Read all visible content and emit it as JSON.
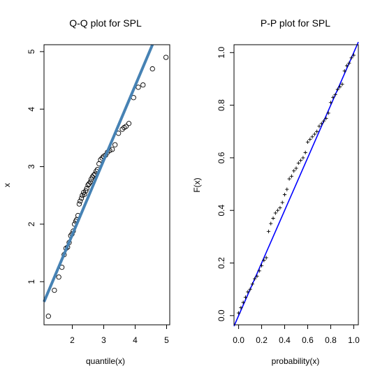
{
  "chart_data": [
    {
      "type": "scatter",
      "title": "Q-Q plot for SPL",
      "xlabel": "quantile(x)",
      "ylabel": "x",
      "xlim": [
        1.1,
        5.1
      ],
      "ylim": [
        0.25,
        5.12
      ],
      "xticks": [
        2,
        3,
        4,
        5
      ],
      "xtick_labels": [
        "2",
        "3",
        "4",
        "5"
      ],
      "yticks": [
        1,
        2,
        3,
        4,
        5
      ],
      "ytick_labels": [
        "1",
        "2",
        "3",
        "4",
        "5"
      ],
      "marker": "open-circle",
      "reference_line": {
        "x": [
          1.1,
          4.55
        ],
        "y": [
          0.65,
          5.12
        ],
        "color": "#4682b4"
      },
      "points": [
        [
          1.24,
          0.4
        ],
        [
          1.43,
          0.85
        ],
        [
          1.57,
          1.08
        ],
        [
          1.67,
          1.25
        ],
        [
          1.74,
          1.47
        ],
        [
          1.8,
          1.58
        ],
        [
          1.85,
          1.6
        ],
        [
          1.9,
          1.68
        ],
        [
          1.95,
          1.8
        ],
        [
          1.99,
          1.83
        ],
        [
          2.03,
          1.88
        ],
        [
          2.07,
          2.0
        ],
        [
          2.11,
          2.05
        ],
        [
          2.14,
          2.08
        ],
        [
          2.18,
          2.15
        ],
        [
          2.22,
          2.35
        ],
        [
          2.25,
          2.4
        ],
        [
          2.29,
          2.45
        ],
        [
          2.32,
          2.5
        ],
        [
          2.36,
          2.55
        ],
        [
          2.39,
          2.52
        ],
        [
          2.43,
          2.58
        ],
        [
          2.46,
          2.62
        ],
        [
          2.5,
          2.68
        ],
        [
          2.53,
          2.7
        ],
        [
          2.57,
          2.73
        ],
        [
          2.6,
          2.78
        ],
        [
          2.64,
          2.82
        ],
        [
          2.68,
          2.85
        ],
        [
          2.72,
          2.87
        ],
        [
          2.76,
          2.92
        ],
        [
          2.8,
          2.95
        ],
        [
          2.85,
          3.05
        ],
        [
          2.9,
          3.12
        ],
        [
          2.95,
          3.15
        ],
        [
          3.0,
          3.18
        ],
        [
          3.06,
          3.2
        ],
        [
          3.12,
          3.25
        ],
        [
          3.19,
          3.28
        ],
        [
          3.27,
          3.3
        ],
        [
          3.36,
          3.38
        ],
        [
          3.47,
          3.58
        ],
        [
          3.59,
          3.65
        ],
        [
          3.65,
          3.68
        ],
        [
          3.71,
          3.7
        ],
        [
          3.8,
          3.75
        ],
        [
          3.95,
          4.2
        ],
        [
          4.1,
          4.38
        ],
        [
          4.25,
          4.42
        ],
        [
          4.55,
          4.7
        ],
        [
          4.98,
          4.9
        ]
      ]
    },
    {
      "type": "scatter",
      "title": "P-P plot for SPL",
      "xlabel": "probability(x)",
      "ylabel": "F(x)",
      "xlim": [
        -0.04,
        1.04
      ],
      "ylim": [
        -0.035,
        1.03
      ],
      "xticks": [
        0.0,
        0.2,
        0.4,
        0.6,
        0.8,
        1.0
      ],
      "xtick_labels": [
        "0.0",
        "0.2",
        "0.4",
        "0.6",
        "0.8",
        "1.0"
      ],
      "yticks": [
        0.0,
        0.2,
        0.4,
        0.6,
        0.8,
        1.0
      ],
      "ytick_labels": [
        "0.0",
        "0.2",
        "0.4",
        "0.6",
        "0.8",
        "1.0"
      ],
      "marker": "plus",
      "reference_line": {
        "x": [
          -0.04,
          1.04
        ],
        "y": [
          -0.04,
          1.04
        ],
        "color": "#0000ff"
      },
      "points": [
        [
          0.0,
          0.01
        ],
        [
          0.02,
          0.03
        ],
        [
          0.04,
          0.05
        ],
        [
          0.06,
          0.07
        ],
        [
          0.08,
          0.09
        ],
        [
          0.1,
          0.1
        ],
        [
          0.12,
          0.12
        ],
        [
          0.14,
          0.14
        ],
        [
          0.16,
          0.15
        ],
        [
          0.18,
          0.17
        ],
        [
          0.2,
          0.19
        ],
        [
          0.22,
          0.21
        ],
        [
          0.24,
          0.22
        ],
        [
          0.26,
          0.32
        ],
        [
          0.28,
          0.35
        ],
        [
          0.3,
          0.37
        ],
        [
          0.32,
          0.39
        ],
        [
          0.34,
          0.4
        ],
        [
          0.36,
          0.41
        ],
        [
          0.38,
          0.43
        ],
        [
          0.4,
          0.46
        ],
        [
          0.42,
          0.48
        ],
        [
          0.44,
          0.52
        ],
        [
          0.46,
          0.53
        ],
        [
          0.48,
          0.55
        ],
        [
          0.5,
          0.56
        ],
        [
          0.52,
          0.58
        ],
        [
          0.54,
          0.59
        ],
        [
          0.56,
          0.6
        ],
        [
          0.58,
          0.62
        ],
        [
          0.6,
          0.66
        ],
        [
          0.62,
          0.67
        ],
        [
          0.64,
          0.68
        ],
        [
          0.66,
          0.69
        ],
        [
          0.68,
          0.7
        ],
        [
          0.7,
          0.72
        ],
        [
          0.72,
          0.73
        ],
        [
          0.74,
          0.74
        ],
        [
          0.76,
          0.75
        ],
        [
          0.78,
          0.77
        ],
        [
          0.8,
          0.81
        ],
        [
          0.82,
          0.83
        ],
        [
          0.84,
          0.84
        ],
        [
          0.86,
          0.86
        ],
        [
          0.88,
          0.87
        ],
        [
          0.9,
          0.88
        ],
        [
          0.92,
          0.93
        ],
        [
          0.94,
          0.95
        ],
        [
          0.96,
          0.96
        ],
        [
          0.98,
          0.98
        ],
        [
          1.0,
          0.99
        ]
      ]
    }
  ]
}
